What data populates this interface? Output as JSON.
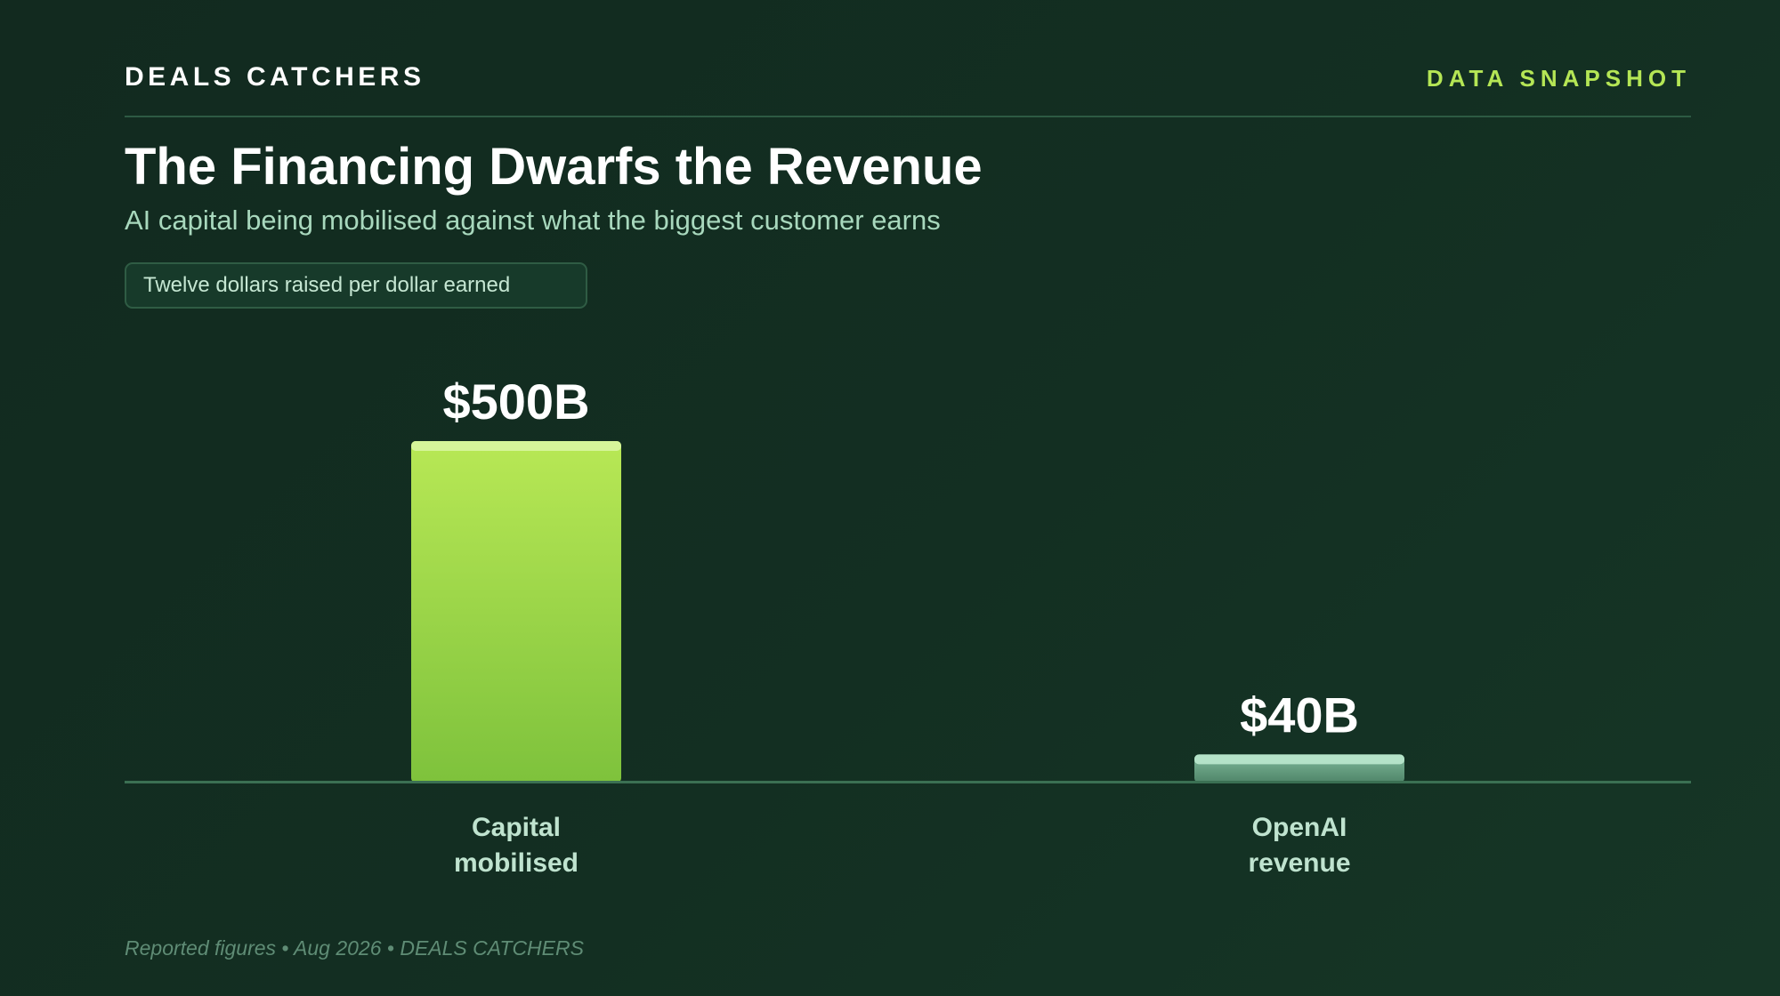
{
  "header": {
    "brand": "DEALS CATCHERS",
    "tag": "DATA SNAPSHOT"
  },
  "title": "The Financing Dwarfs the Revenue",
  "subtitle": "AI capital being mobilised against what the biggest customer earns",
  "badge": "Twelve dollars raised per dollar earned",
  "chart_data": {
    "type": "bar",
    "categories": [
      [
        "Capital",
        "mobilised"
      ],
      [
        "OpenAI",
        "revenue"
      ]
    ],
    "values": [
      500,
      40
    ],
    "value_labels": [
      "$500B",
      "$40B"
    ],
    "unit": "B USD",
    "ylim": [
      0,
      500
    ],
    "grid": false,
    "legend": "none"
  },
  "footer": "Reported figures • Aug 2026 • DEALS CATCHERS",
  "colors": {
    "background": "#132e22",
    "accent": "#b5e655",
    "bar_primary_top": "#b8e855",
    "bar_primary_bottom": "#7ec23c",
    "bar_secondary_top": "#7fb99a",
    "bar_secondary_bottom": "#4f8569",
    "axis": "#3b7053"
  }
}
